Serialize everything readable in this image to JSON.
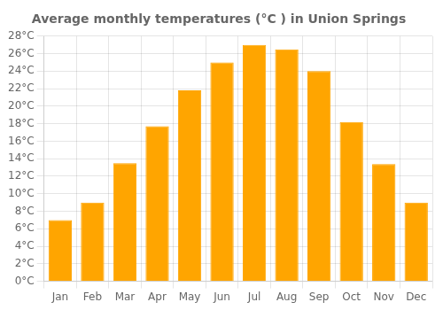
{
  "chart_data": {
    "type": "bar",
    "title": "Average monthly temperatures (°C ) in Union Springs",
    "categories": [
      "Jan",
      "Feb",
      "Mar",
      "Apr",
      "May",
      "Jun",
      "Jul",
      "Aug",
      "Sep",
      "Oct",
      "Nov",
      "Dec"
    ],
    "values": [
      7.0,
      9.0,
      13.5,
      17.7,
      21.8,
      25.0,
      27.0,
      26.5,
      24.0,
      18.2,
      13.4,
      9.0
    ],
    "color": "#FFA500",
    "ylim": [
      0,
      28
    ],
    "yticks": [
      {
        "value": 0,
        "label": "0°C"
      },
      {
        "value": 2,
        "label": "2°C"
      },
      {
        "value": 4,
        "label": "4°C"
      },
      {
        "value": 6,
        "label": "6°C"
      },
      {
        "value": 8,
        "label": "8°C"
      },
      {
        "value": 10,
        "label": "10°C"
      },
      {
        "value": 12,
        "label": "12°C"
      },
      {
        "value": 14,
        "label": "14°C"
      },
      {
        "value": 16,
        "label": "16°C"
      },
      {
        "value": 18,
        "label": "18°C"
      },
      {
        "value": 20,
        "label": "20°C"
      },
      {
        "value": 22,
        "label": "22°C"
      },
      {
        "value": 24,
        "label": "24°C"
      },
      {
        "value": 26,
        "label": "26°C"
      },
      {
        "value": 28,
        "label": "28°C"
      }
    ],
    "grid": true
  }
}
